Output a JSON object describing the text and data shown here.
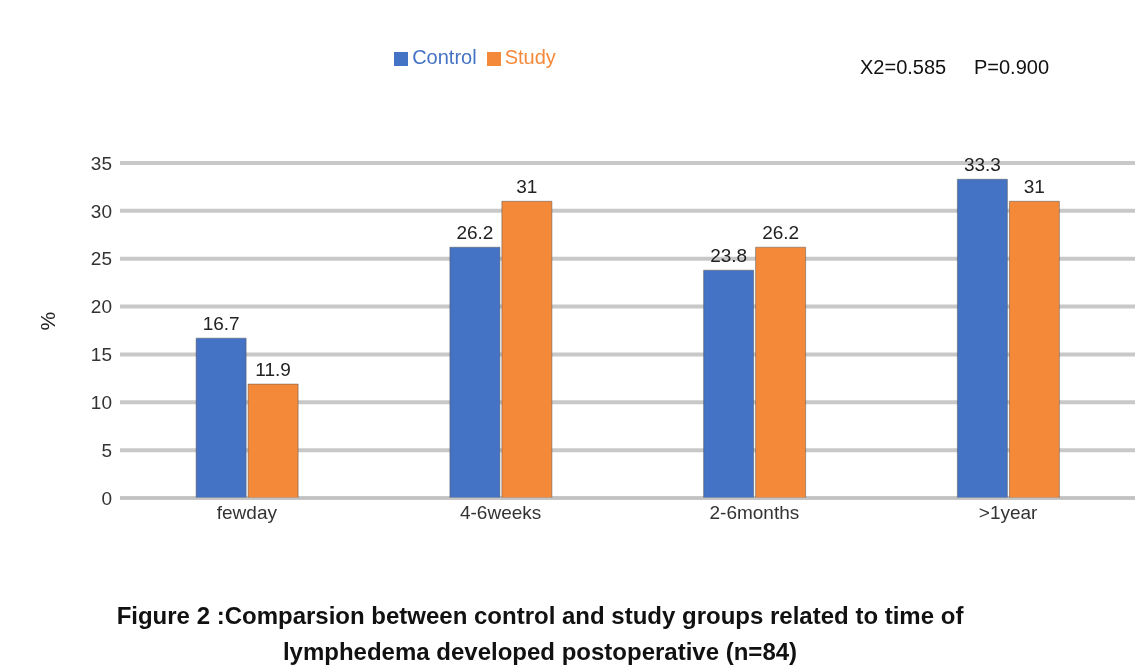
{
  "chart_data": {
    "type": "bar",
    "title": "Figure 2 :Comparsion between control and study groups related to time of lymphedema developed postoperative  (n=84)",
    "ylabel": "%",
    "annotations": [
      "X2=0.585     P=0.900"
    ],
    "categories": [
      "fewday",
      "4-6weeks",
      "2-6months",
      ">1year"
    ],
    "series": [
      {
        "name": "Control",
        "color": "#4472c4",
        "values": [
          16.7,
          26.2,
          23.8,
          33.3
        ]
      },
      {
        "name": "Study",
        "color": "#f5893a",
        "values": [
          11.9,
          31,
          26.2,
          31
        ]
      }
    ],
    "ylim": [
      0,
      35
    ],
    "yticks": [
      0,
      5,
      10,
      15,
      20,
      25,
      30,
      35
    ],
    "grid": "y",
    "legend": "top",
    "data_labels": true
  }
}
